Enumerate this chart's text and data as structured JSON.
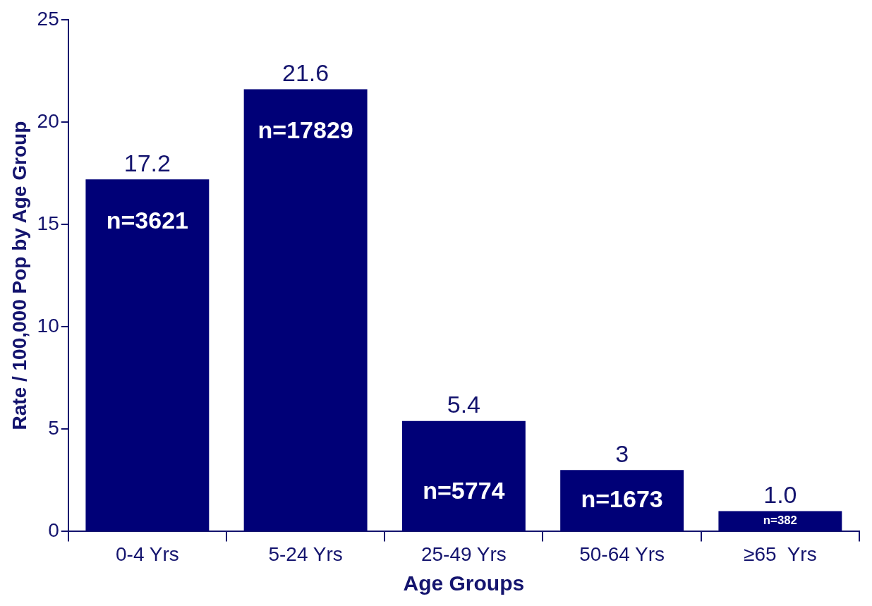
{
  "chart_data": {
    "type": "bar",
    "xlabel": "Age Groups",
    "ylabel": "Rate / 100,000 Pop by Age Group",
    "categories": [
      "0-4 Yrs",
      "5-24 Yrs",
      "25-49 Yrs",
      "50-64 Yrs",
      "≥65  Yrs"
    ],
    "values": [
      17.2,
      21.6,
      5.4,
      3,
      1.0
    ],
    "value_labels": [
      "17.2",
      "21.6",
      "5.4",
      "3",
      "1.0"
    ],
    "color": "#000077",
    "ylim": [
      0,
      25
    ],
    "yticks": [
      0,
      5,
      10,
      15,
      20,
      25
    ],
    "grid": false,
    "legend": false,
    "annotations": [
      "n=3621",
      "n=17829",
      "n=5774",
      "n=1673",
      "n=382"
    ]
  }
}
